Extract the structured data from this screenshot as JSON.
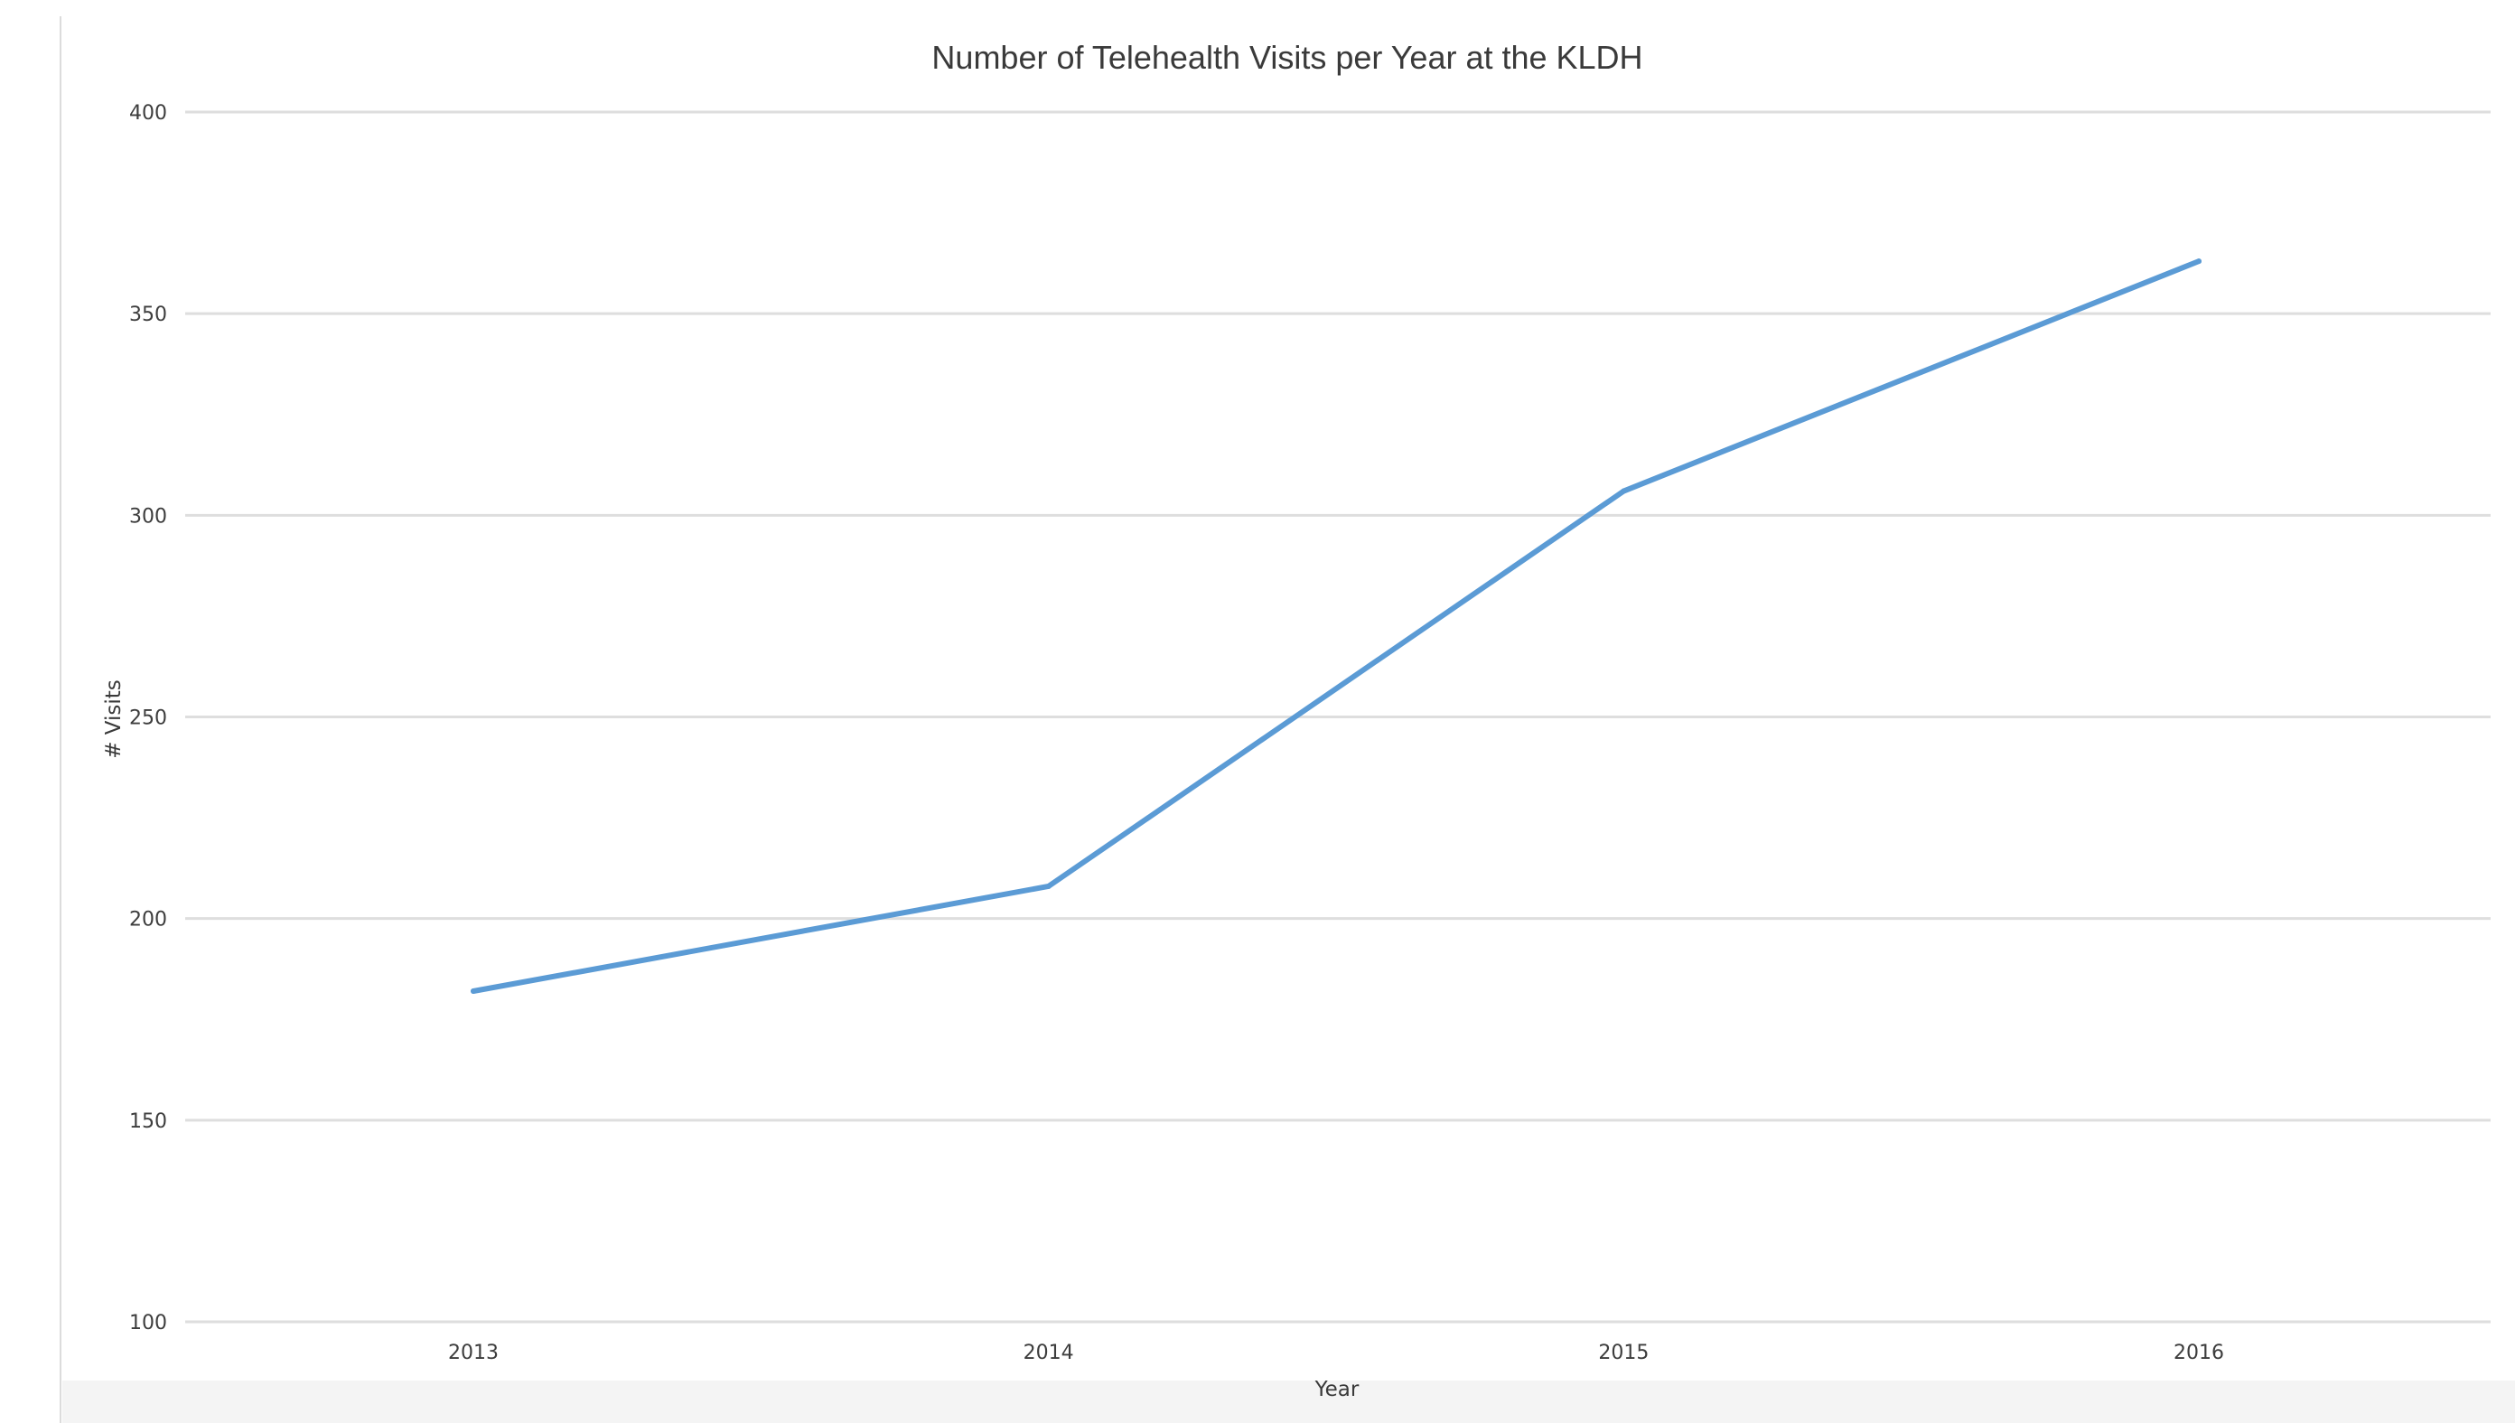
{
  "chart_data": {
    "type": "line",
    "title": "Number of Telehealth Visits per Year at the KLDH",
    "xlabel": "Year",
    "ylabel": "# Visits",
    "categories": [
      "2013",
      "2014",
      "2015",
      "2016"
    ],
    "series": [
      {
        "values": [
          182,
          208,
          306,
          363
        ],
        "color": "#5b9bd5"
      }
    ],
    "ylim": [
      100,
      400
    ],
    "yticks": [
      100,
      150,
      200,
      250,
      300,
      350,
      400
    ],
    "grid": true,
    "legend": "none"
  }
}
